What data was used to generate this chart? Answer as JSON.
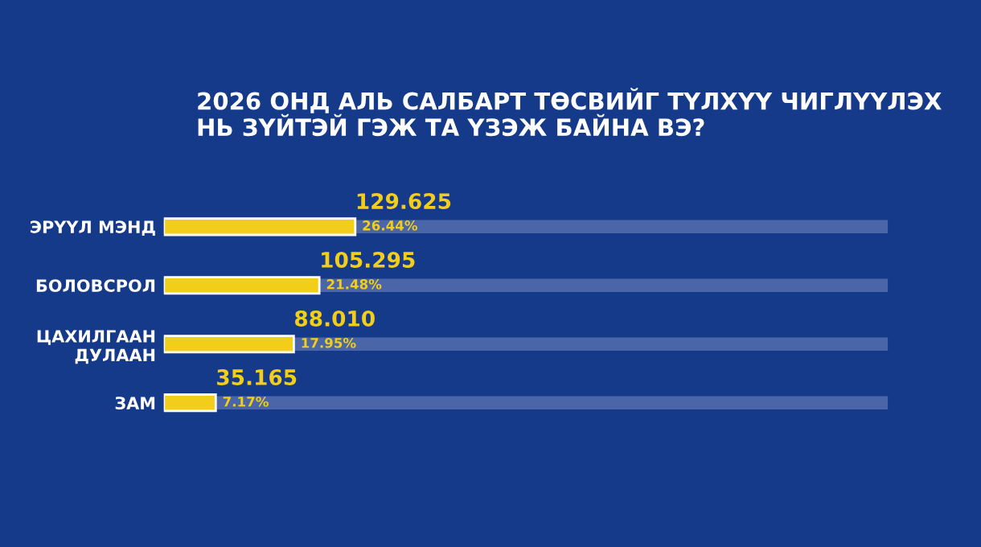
{
  "chart_data": {
    "type": "bar",
    "orientation": "horizontal",
    "title": "2026 ОНД АЛЬ САЛБАРТ ТӨСВИЙГ ТҮЛХҮҮ ЧИГЛҮҮЛЭХ НЬ ЗҮЙТЭЙ ГЭЖ ТА ҮЗЭЖ БАЙНА ВЭ?",
    "categories": [
      "ЭРҮҮЛ МЭНД",
      "БОЛОВСРОЛ",
      "ЦАХИЛГААН\nДУЛААН",
      "ЗАМ"
    ],
    "values": [
      26.44,
      21.48,
      17.95,
      7.17
    ],
    "value_labels": [
      "26.44%",
      "21.48%",
      "17.95%",
      "7.17%"
    ],
    "color": "#f2cd1a",
    "xlim": [
      0,
      100
    ],
    "tick_labels": "y",
    "grid": "y",
    "legend": false,
    "annotations": [
      {
        "text": "129.625",
        "x": 26.44,
        "y": "ЭРҮҮЛ МЭНД"
      },
      {
        "text": "105.295",
        "x": 21.48,
        "y": "БОЛОВСРОЛ"
      },
      {
        "text": "88.010",
        "x": 17.95,
        "y": "ЦАХИЛГААН\nДУЛААН"
      },
      {
        "text": "35.165",
        "x": 7.17,
        "y": "ЗАМ"
      }
    ]
  }
}
